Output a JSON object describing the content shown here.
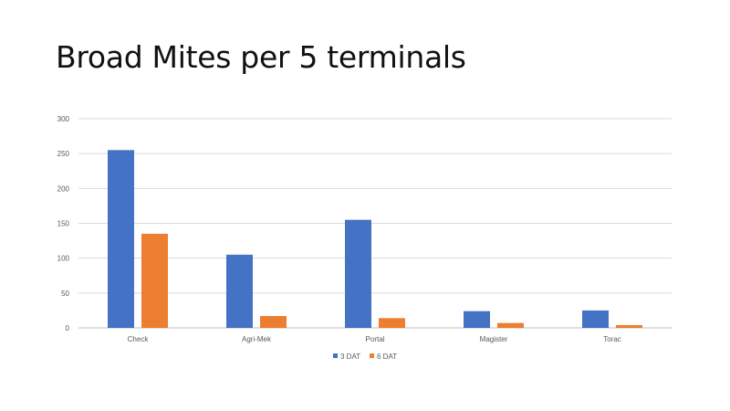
{
  "chart_data": {
    "type": "bar",
    "title": "Broad Mites per 5 terminals",
    "categories": [
      "Check",
      "Agri-Mek",
      "Portal",
      "Magister",
      "Torac"
    ],
    "series": [
      {
        "name": "3 DAT",
        "color": "#4472C4",
        "values": [
          255,
          105,
          155,
          24,
          25
        ]
      },
      {
        "name": "6 DAT",
        "color": "#ED7D31",
        "values": [
          135,
          17,
          14,
          7,
          4
        ]
      }
    ],
    "ylim": [
      0,
      300
    ],
    "yticks": [
      0,
      50,
      100,
      150,
      200,
      250,
      300
    ],
    "grid": true,
    "legend": "bottom"
  }
}
